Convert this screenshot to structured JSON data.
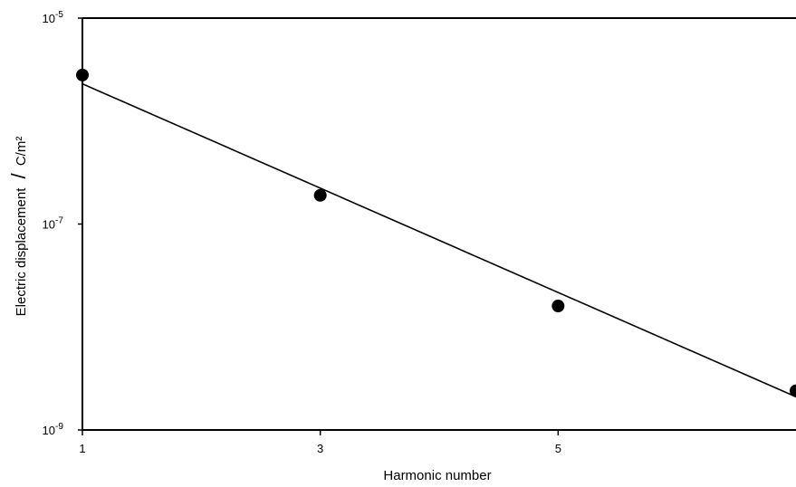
{
  "chart_data": {
    "type": "scatter",
    "title": "",
    "xlabel": "Harmonic number",
    "ylabel": "Electric displacement",
    "ylabel_unit": "C/m²",
    "yscale": "log",
    "xlim": [
      1,
      7
    ],
    "ylim": [
      1e-09,
      1e-05
    ],
    "x_ticks": [
      {
        "value": 1,
        "label": "1"
      },
      {
        "value": 3,
        "label": "3"
      },
      {
        "value": 5,
        "label": "5"
      }
    ],
    "y_ticks": [
      {
        "value": 1e-09,
        "base": "10",
        "exp": "-9"
      },
      {
        "value": 1e-07,
        "base": "10",
        "exp": "-7"
      },
      {
        "value": 1e-05,
        "base": "10",
        "exp": "-5"
      }
    ],
    "grid": false,
    "legend": "none",
    "colors": {
      "marker": "#000000",
      "line": "#000000",
      "frame": "#000000"
    },
    "series": [
      {
        "kind": "points",
        "x": [
          1,
          3,
          5,
          7
        ],
        "y": [
          2.8e-06,
          1.9e-07,
          1.6e-08,
          2.4e-09
        ]
      },
      {
        "kind": "fit-line",
        "x": [
          1,
          7
        ],
        "y": [
          2.3e-06,
          2.1e-09
        ]
      }
    ]
  }
}
